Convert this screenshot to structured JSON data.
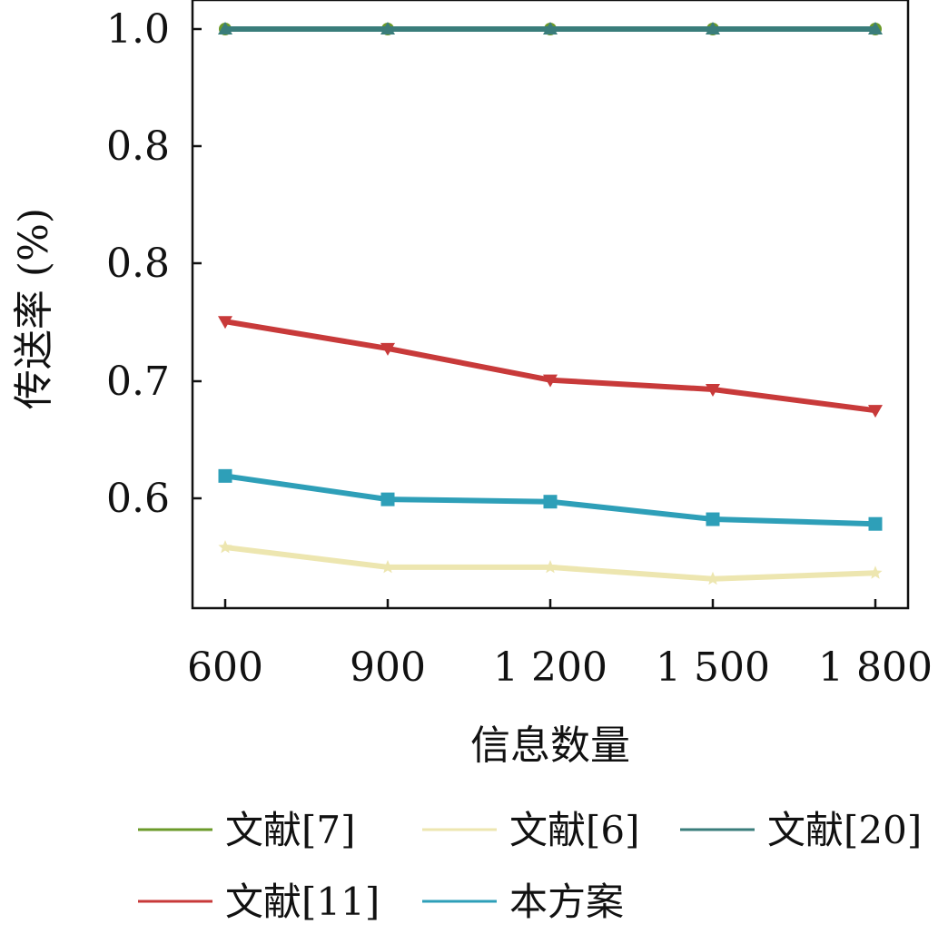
{
  "chart_data": {
    "type": "line",
    "title": "",
    "xlabel": "信息数量",
    "ylabel": "传送率 (%)",
    "categories": [
      "600",
      "900",
      "1 200",
      "1 500",
      "1 800"
    ],
    "y_tick_labels": [
      "1.0",
      "0.8",
      "0.8",
      "0.7",
      "0.6"
    ],
    "ylim": [
      0.505,
      1.02
    ],
    "grid": false,
    "legend_position": "bottom",
    "series": [
      {
        "name": "文献[7]",
        "color": "#6b9a2a",
        "marker": "circle",
        "values": [
          1.0,
          1.0,
          1.0,
          1.0,
          1.0
        ]
      },
      {
        "name": "文献[6]",
        "color": "#ede6b0",
        "marker": "star",
        "values": [
          0.557,
          0.54,
          0.54,
          0.53,
          0.535
        ]
      },
      {
        "name": "文献[20]",
        "color": "#3a7d7b",
        "marker": "triangle",
        "values": [
          1.0,
          1.0,
          1.0,
          1.0,
          1.0
        ]
      },
      {
        "name": "文献[11]",
        "color": "#c83a3a",
        "marker": "triangle-down",
        "values": [
          0.75,
          0.727,
          0.7,
          0.692,
          0.674
        ]
      },
      {
        "name": "本方案",
        "color": "#2e9fb8",
        "marker": "square",
        "values": [
          0.618,
          0.598,
          0.596,
          0.581,
          0.577
        ]
      }
    ],
    "legend_order": [
      0,
      1,
      2,
      3,
      4
    ]
  }
}
